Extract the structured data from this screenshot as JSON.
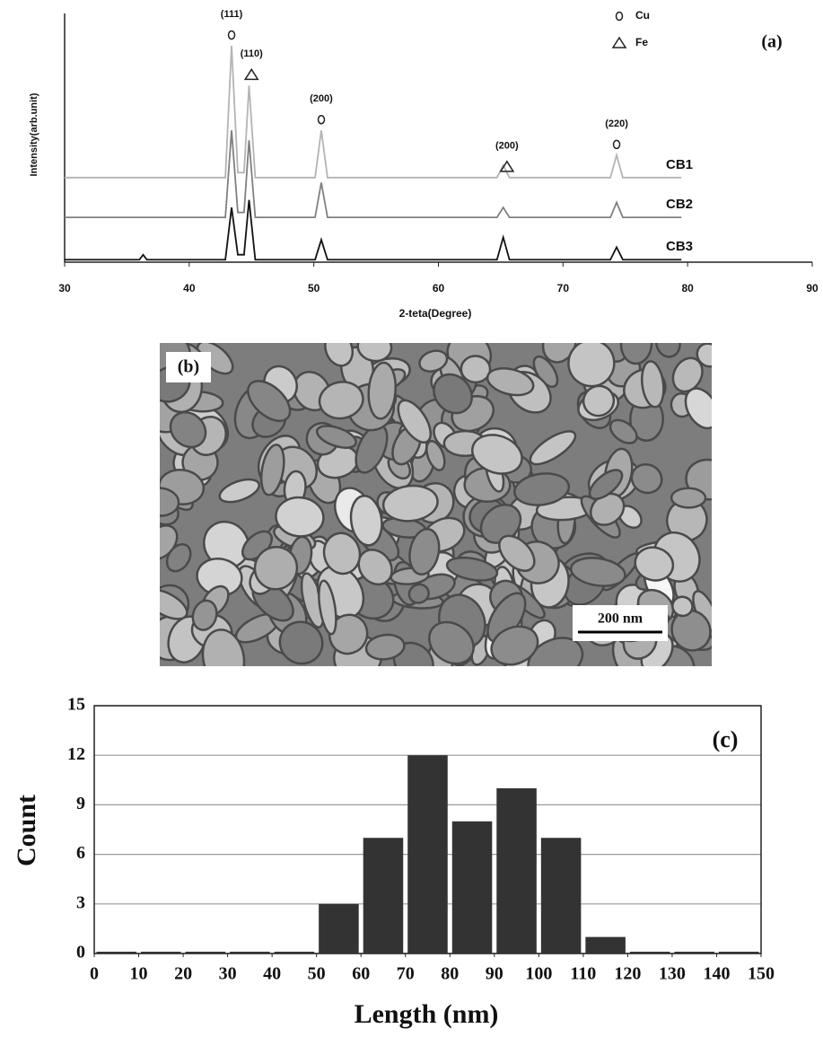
{
  "chart_data": [
    {
      "type": "line",
      "x_label": "2-teta(Degree)",
      "y_label": "Intensity(arb.unit)",
      "panel_label": "(a)",
      "x": [
        30,
        36,
        36.3,
        36.6,
        42.9,
        43.4,
        43.9,
        44.4,
        44.8,
        45.3,
        50.1,
        50.6,
        51.1,
        64.7,
        65.2,
        65.7,
        73.8,
        74.3,
        74.8,
        79.5
      ],
      "series": [
        {
          "name": "CB1",
          "color": "#b4b4b4",
          "values": [
            34,
            34,
            34,
            34,
            34,
            87,
            36,
            36,
            71,
            34,
            34,
            53,
            34,
            34,
            39,
            34,
            34,
            43,
            34,
            34
          ]
        },
        {
          "name": "CB2",
          "color": "#808080",
          "values": [
            18,
            18,
            18,
            18,
            18,
            53,
            20,
            20,
            49,
            18,
            18,
            32,
            18,
            18,
            22,
            18,
            18,
            24,
            18,
            18
          ]
        },
        {
          "name": "CB3",
          "color": "#111111",
          "values": [
            1,
            1,
            3,
            1,
            1,
            22,
            3,
            3,
            25,
            1,
            1,
            9,
            1,
            1,
            10,
            1,
            1,
            6,
            1,
            1
          ]
        }
      ],
      "xlim": [
        30,
        90
      ],
      "xticks": [
        30,
        40,
        50,
        60,
        70,
        80,
        90
      ],
      "ylim": [
        0,
        100
      ],
      "legend": [
        "Cu",
        "Fe"
      ],
      "annotations": [
        {
          "text": "(111)",
          "x": 43.4,
          "phase": "Cu"
        },
        {
          "text": "(110)",
          "x": 45,
          "phase": "Fe"
        },
        {
          "text": "(200)",
          "x": 50.6,
          "phase": "Cu"
        },
        {
          "text": "(200)",
          "x": 65.5,
          "phase": "Fe"
        },
        {
          "text": "(220)",
          "x": 74.3,
          "phase": "Cu"
        }
      ]
    },
    {
      "type": "histogram",
      "x_label": "Length (nm)",
      "y_label": "Count",
      "panel_label": "(c)",
      "bins": [
        0,
        10,
        20,
        30,
        40,
        50,
        60,
        70,
        80,
        90,
        100,
        110,
        120,
        130,
        140,
        150
      ],
      "counts": [
        0,
        0,
        0,
        0,
        0,
        3,
        7,
        12,
        8,
        10,
        7,
        1,
        0,
        0,
        0
      ],
      "color": "#333333",
      "xlim": [
        0,
        150
      ],
      "xticks": [
        0,
        10,
        20,
        30,
        40,
        50,
        60,
        70,
        80,
        90,
        100,
        110,
        120,
        130,
        140,
        150
      ],
      "ylim": [
        0,
        15
      ],
      "yticks": [
        0,
        3,
        6,
        9,
        12,
        15
      ],
      "grid": true
    }
  ],
  "sem_image": {
    "panel_label": "(b)",
    "scale_bar": "200 nm"
  }
}
